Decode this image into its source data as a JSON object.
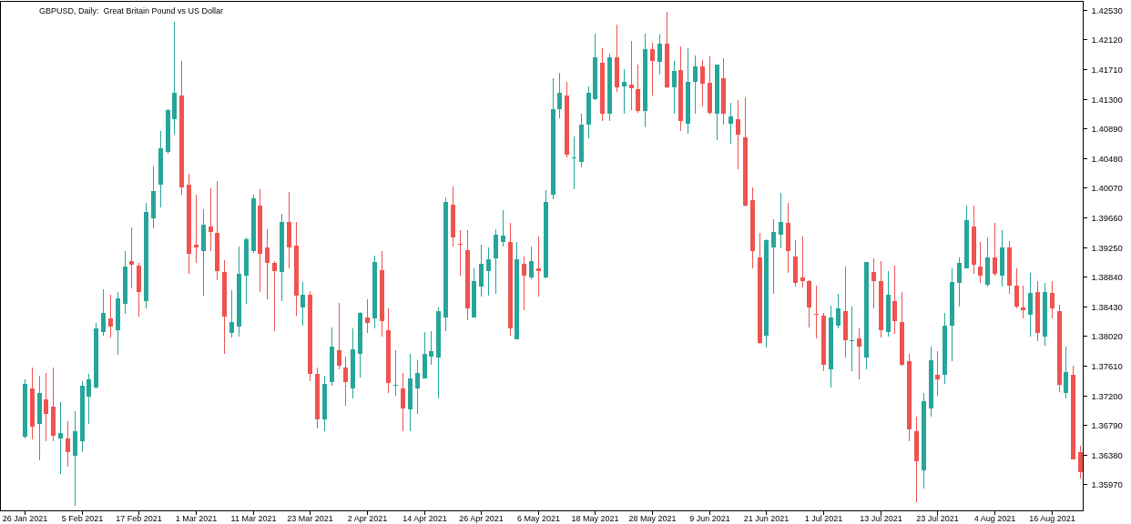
{
  "chart_data": {
    "type": "candlestick",
    "title": "GBPUSD, Daily:  Great Britain Pound vs US Dollar",
    "categories": [
      "26 Jan 2021",
      null,
      null,
      null,
      null,
      null,
      null,
      null,
      "5 Feb 2021",
      null,
      null,
      null,
      null,
      null,
      null,
      null,
      "17 Feb 2021",
      null,
      null,
      null,
      null,
      null,
      null,
      null,
      "1 Mar 2021",
      null,
      null,
      null,
      null,
      null,
      null,
      null,
      "11 Mar 2021",
      null,
      null,
      null,
      null,
      null,
      null,
      null,
      "23 Mar 2021",
      null,
      null,
      null,
      null,
      null,
      null,
      null,
      "2 Apr 2021",
      null,
      null,
      null,
      null,
      null,
      null,
      null,
      "14 Apr 2021",
      null,
      null,
      null,
      null,
      null,
      null,
      null,
      "26 Apr 2021",
      null,
      null,
      null,
      null,
      null,
      null,
      null,
      "6 May 2021",
      null,
      null,
      null,
      null,
      null,
      null,
      null,
      "18 May 2021",
      null,
      null,
      null,
      null,
      null,
      null,
      null,
      "28 May 2021",
      null,
      null,
      null,
      null,
      null,
      null,
      null,
      "9 Jun 2021",
      null,
      null,
      null,
      null,
      null,
      null,
      null,
      "21 Jun 2021",
      null,
      null,
      null,
      null,
      null,
      null,
      null,
      "1 Jul 2021",
      null,
      null,
      null,
      null,
      null,
      null,
      null,
      "13 Jul 2021",
      null,
      null,
      null,
      null,
      null,
      null,
      null,
      "23 Jul 2021",
      null,
      null,
      null,
      null,
      null,
      null,
      null,
      "4 Aug 2021",
      null,
      null,
      null,
      null,
      null,
      null,
      null,
      "16 Aug 2021",
      null,
      null,
      null,
      null
    ],
    "ohlc": [
      [
        1.3663,
        1.3742,
        1.366,
        1.3736
      ],
      [
        1.3729,
        1.3759,
        1.3659,
        1.3677
      ],
      [
        1.3681,
        1.3747,
        1.363,
        1.3723
      ],
      [
        1.3714,
        1.3751,
        1.3656,
        1.3694
      ],
      [
        1.3704,
        1.3759,
        1.3657,
        1.3664
      ],
      [
        1.366,
        1.3711,
        1.3611,
        1.3668
      ],
      [
        1.366,
        1.3684,
        1.3621,
        1.3642
      ],
      [
        1.3637,
        1.3698,
        1.3567,
        1.3671
      ],
      [
        1.3657,
        1.374,
        1.3642,
        1.3733
      ],
      [
        1.3718,
        1.375,
        1.368,
        1.3742
      ],
      [
        1.3731,
        1.382,
        1.373,
        1.3812
      ],
      [
        1.3807,
        1.3867,
        1.3802,
        1.3834
      ],
      [
        1.3826,
        1.3859,
        1.38,
        1.3815
      ],
      [
        1.381,
        1.3863,
        1.3776,
        1.3854
      ],
      [
        1.3847,
        1.3919,
        1.3833,
        1.3898
      ],
      [
        1.3906,
        1.3952,
        1.3868,
        1.3901
      ],
      [
        1.3899,
        1.3903,
        1.3829,
        1.3863
      ],
      [
        1.385,
        1.3986,
        1.384,
        1.3974
      ],
      [
        1.3965,
        1.4036,
        1.3951,
        1.4002
      ],
      [
        1.4011,
        1.4086,
        1.398,
        1.4062
      ],
      [
        1.4057,
        1.4116,
        1.4054,
        1.4115
      ],
      [
        1.4102,
        1.4237,
        1.4081,
        1.4139
      ],
      [
        1.4135,
        1.4182,
        1.3998,
        1.4008
      ],
      [
        1.4011,
        1.4026,
        1.3888,
        1.3916
      ],
      [
        1.3928,
        1.3998,
        1.3903,
        1.3925
      ],
      [
        1.392,
        1.3977,
        1.3858,
        1.3956
      ],
      [
        1.3953,
        1.4006,
        1.392,
        1.3946
      ],
      [
        1.3945,
        1.4016,
        1.3879,
        1.3892
      ],
      [
        1.3891,
        1.3907,
        1.3778,
        1.3829
      ],
      [
        1.3806,
        1.3865,
        1.38,
        1.3821
      ],
      [
        1.3815,
        1.3926,
        1.3801,
        1.3888
      ],
      [
        1.3886,
        1.3938,
        1.3846,
        1.3936
      ],
      [
        1.392,
        1.3997,
        1.3917,
        1.3992
      ],
      [
        1.3983,
        1.4005,
        1.3863,
        1.3916
      ],
      [
        1.3925,
        1.395,
        1.3853,
        1.3903
      ],
      [
        1.3903,
        1.3906,
        1.3809,
        1.3892
      ],
      [
        1.3891,
        1.3971,
        1.385,
        1.396
      ],
      [
        1.396,
        1.4001,
        1.3896,
        1.3924
      ],
      [
        1.3927,
        1.396,
        1.383,
        1.3858
      ],
      [
        1.3841,
        1.3877,
        1.3817,
        1.3859
      ],
      [
        1.3859,
        1.3864,
        1.374,
        1.375
      ],
      [
        1.375,
        1.3759,
        1.3674,
        1.3687
      ],
      [
        1.3687,
        1.3747,
        1.3671,
        1.3736
      ],
      [
        1.3739,
        1.3814,
        1.3733,
        1.3788
      ],
      [
        1.3783,
        1.3848,
        1.3756,
        1.3761
      ],
      [
        1.3759,
        1.3774,
        1.3706,
        1.3739
      ],
      [
        1.373,
        1.3812,
        1.3716,
        1.3784
      ],
      [
        1.3777,
        1.3835,
        1.3745,
        1.3834
      ],
      [
        1.3828,
        1.3853,
        1.3806,
        1.382
      ],
      [
        1.3826,
        1.3913,
        1.3813,
        1.3905
      ],
      [
        1.3893,
        1.3919,
        1.3801,
        1.3823
      ],
      [
        1.381,
        1.384,
        1.3723,
        1.3737
      ],
      [
        1.3733,
        1.3782,
        1.3719,
        1.3734
      ],
      [
        1.3729,
        1.3751,
        1.3671,
        1.3702
      ],
      [
        1.3701,
        1.3777,
        1.367,
        1.3744
      ],
      [
        1.373,
        1.3768,
        1.3694,
        1.3751
      ],
      [
        1.3744,
        1.3808,
        1.3743,
        1.3777
      ],
      [
        1.3773,
        1.3809,
        1.3762,
        1.3781
      ],
      [
        1.3772,
        1.3842,
        1.3716,
        1.3837
      ],
      [
        1.3828,
        1.3994,
        1.3809,
        1.3987
      ],
      [
        1.3984,
        1.4009,
        1.3926,
        1.3938
      ],
      [
        1.393,
        1.3948,
        1.3885,
        1.3928
      ],
      [
        1.3921,
        1.3948,
        1.3824,
        1.384
      ],
      [
        1.3828,
        1.3896,
        1.3828,
        1.3878
      ],
      [
        1.3871,
        1.3928,
        1.3857,
        1.3902
      ],
      [
        1.3892,
        1.3924,
        1.3858,
        1.3908
      ],
      [
        1.3909,
        1.395,
        1.3861,
        1.3942
      ],
      [
        1.3932,
        1.3976,
        1.3926,
        1.3941
      ],
      [
        1.3932,
        1.3958,
        1.3802,
        1.3812
      ],
      [
        1.3798,
        1.3932,
        1.3798,
        1.3908
      ],
      [
        1.3902,
        1.3912,
        1.3838,
        1.3885
      ],
      [
        1.3883,
        1.3926,
        1.3881,
        1.3906
      ],
      [
        1.3896,
        1.394,
        1.3857,
        1.3892
      ],
      [
        1.3883,
        1.4004,
        1.3882,
        1.3987
      ],
      [
        1.3997,
        1.4158,
        1.3991,
        1.4116
      ],
      [
        1.4116,
        1.4166,
        1.4103,
        1.4139
      ],
      [
        1.4135,
        1.4153,
        1.4049,
        1.4053
      ],
      [
        1.4048,
        1.4078,
        1.4005,
        1.4049
      ],
      [
        1.4043,
        1.411,
        1.4035,
        1.4094
      ],
      [
        1.4094,
        1.4147,
        1.4076,
        1.4138
      ],
      [
        1.413,
        1.422,
        1.4128,
        1.4188
      ],
      [
        1.418,
        1.42,
        1.4099,
        1.4109
      ],
      [
        1.4109,
        1.4192,
        1.41,
        1.4188
      ],
      [
        1.4188,
        1.4233,
        1.414,
        1.4146
      ],
      [
        1.4147,
        1.4171,
        1.411,
        1.4153
      ],
      [
        1.415,
        1.421,
        1.4115,
        1.4145
      ],
      [
        1.4144,
        1.4177,
        1.4111,
        1.4113
      ],
      [
        1.4113,
        1.422,
        1.409,
        1.4199
      ],
      [
        1.4199,
        1.4208,
        1.4134,
        1.4183
      ],
      [
        1.4181,
        1.4219,
        1.4163,
        1.4206
      ],
      [
        1.4206,
        1.425,
        1.4145,
        1.4146
      ],
      [
        1.4146,
        1.4182,
        1.411,
        1.4168
      ],
      [
        1.417,
        1.4203,
        1.4085,
        1.41
      ],
      [
        1.4095,
        1.42,
        1.4082,
        1.4154
      ],
      [
        1.4153,
        1.419,
        1.411,
        1.4175
      ],
      [
        1.4175,
        1.4184,
        1.4119,
        1.4151
      ],
      [
        1.4152,
        1.4189,
        1.4108,
        1.4111
      ],
      [
        1.4109,
        1.4178,
        1.4073,
        1.4177
      ],
      [
        1.4158,
        1.4186,
        1.4094,
        1.411
      ],
      [
        1.4096,
        1.4124,
        1.4068,
        1.4106
      ],
      [
        1.4102,
        1.4128,
        1.4033,
        1.4081
      ],
      [
        1.4077,
        1.4132,
        1.3981,
        1.3982
      ],
      [
        1.399,
        1.4008,
        1.3895,
        1.392
      ],
      [
        1.3911,
        1.3945,
        1.3791,
        1.3792
      ],
      [
        1.3803,
        1.3936,
        1.3786,
        1.3934
      ],
      [
        1.3925,
        1.3964,
        1.386,
        1.3946
      ],
      [
        1.3942,
        1.4,
        1.3923,
        1.396
      ],
      [
        1.3958,
        1.3986,
        1.3889,
        1.3919
      ],
      [
        1.3912,
        1.3935,
        1.3871,
        1.3876
      ],
      [
        1.3883,
        1.394,
        1.3869,
        1.3878
      ],
      [
        1.3878,
        1.3879,
        1.3814,
        1.3842
      ],
      [
        1.3833,
        1.3872,
        1.3799,
        1.3831
      ],
      [
        1.383,
        1.3834,
        1.3754,
        1.3762
      ],
      [
        1.3756,
        1.3844,
        1.3731,
        1.3828
      ],
      [
        1.3816,
        1.3861,
        1.3813,
        1.384
      ],
      [
        1.3837,
        1.3898,
        1.3772,
        1.3796
      ],
      [
        1.3795,
        1.3843,
        1.3753,
        1.3796
      ],
      [
        1.3799,
        1.3812,
        1.3742,
        1.3788
      ],
      [
        1.3772,
        1.3904,
        1.3756,
        1.3904
      ],
      [
        1.389,
        1.391,
        1.384,
        1.3878
      ],
      [
        1.3878,
        1.3906,
        1.38,
        1.381
      ],
      [
        1.3807,
        1.3892,
        1.3801,
        1.3859
      ],
      [
        1.385,
        1.3899,
        1.3805,
        1.3823
      ],
      [
        1.3821,
        1.3863,
        1.3761,
        1.3762
      ],
      [
        1.3767,
        1.3777,
        1.3656,
        1.3673
      ],
      [
        1.367,
        1.3691,
        1.3572,
        1.3629
      ],
      [
        1.3617,
        1.3723,
        1.3591,
        1.3712
      ],
      [
        1.3702,
        1.3787,
        1.3691,
        1.3768
      ],
      [
        1.3749,
        1.3781,
        1.372,
        1.3742
      ],
      [
        1.3748,
        1.3834,
        1.3736,
        1.3817
      ],
      [
        1.3816,
        1.3895,
        1.3767,
        1.3877
      ],
      [
        1.3876,
        1.3911,
        1.3843,
        1.3903
      ],
      [
        1.3896,
        1.3982,
        1.3895,
        1.3962
      ],
      [
        1.3953,
        1.3983,
        1.3888,
        1.3901
      ],
      [
        1.3898,
        1.3932,
        1.3875,
        1.3885
      ],
      [
        1.3873,
        1.3939,
        1.387,
        1.3911
      ],
      [
        1.3911,
        1.3958,
        1.3885,
        1.3888
      ],
      [
        1.3885,
        1.3949,
        1.3871,
        1.3924
      ],
      [
        1.3924,
        1.3933,
        1.3861,
        1.3872
      ],
      [
        1.3872,
        1.3895,
        1.384,
        1.3843
      ],
      [
        1.3841,
        1.3872,
        1.3826,
        1.3838
      ],
      [
        1.3831,
        1.3889,
        1.3801,
        1.3862
      ],
      [
        1.3863,
        1.3878,
        1.3795,
        1.3806
      ],
      [
        1.3801,
        1.3876,
        1.3789,
        1.3863
      ],
      [
        1.3862,
        1.3878,
        1.3827,
        1.384
      ],
      [
        1.3837,
        1.3845,
        1.3725,
        1.3735
      ],
      [
        1.3723,
        1.3787,
        1.3716,
        1.3752
      ],
      [
        1.3749,
        1.3761,
        1.3631,
        1.3631
      ],
      [
        1.3641,
        1.365,
        1.3605,
        1.3614
      ]
    ],
    "colors": [
      "#26a69a",
      "#ef5350",
      "#26a69a",
      "#ef5350",
      "#ef5350",
      "#26a69a",
      "#ef5350",
      "#26a69a",
      "#26a69a",
      "#26a69a",
      "#26a69a",
      "#26a69a",
      "#ef5350",
      "#26a69a",
      "#26a69a",
      "#ef5350",
      "#ef5350",
      "#26a69a",
      "#26a69a",
      "#26a69a",
      "#26a69a",
      "#26a69a",
      "#ef5350",
      "#ef5350",
      "#ef5350",
      "#26a69a",
      "#ef5350",
      "#ef5350",
      "#ef5350",
      "#26a69a",
      "#26a69a",
      "#26a69a",
      "#26a69a",
      "#ef5350",
      "#ef5350",
      "#ef5350",
      "#26a69a",
      "#ef5350",
      "#ef5350",
      "#26a69a",
      "#ef5350",
      "#ef5350",
      "#26a69a",
      "#26a69a",
      "#ef5350",
      "#ef5350",
      "#26a69a",
      "#26a69a",
      "#ef5350",
      "#26a69a",
      "#ef5350",
      "#ef5350",
      "#26a69a",
      "#ef5350",
      "#26a69a",
      "#26a69a",
      "#26a69a",
      "#26a69a",
      "#26a69a",
      "#26a69a",
      "#ef5350",
      "#ef5350",
      "#ef5350",
      "#26a69a",
      "#26a69a",
      "#26a69a",
      "#26a69a",
      "#26a69a",
      "#ef5350",
      "#26a69a",
      "#ef5350",
      "#26a69a",
      "#ef5350",
      "#26a69a",
      "#26a69a",
      "#26a69a",
      "#ef5350",
      "#26a69a",
      "#26a69a",
      "#26a69a",
      "#26a69a",
      "#ef5350",
      "#26a69a",
      "#ef5350",
      "#26a69a",
      "#ef5350",
      "#ef5350",
      "#26a69a",
      "#ef5350",
      "#26a69a",
      "#ef5350",
      "#26a69a",
      "#ef5350",
      "#26a69a",
      "#26a69a",
      "#ef5350",
      "#ef5350",
      "#26a69a",
      "#ef5350",
      "#26a69a",
      "#ef5350",
      "#ef5350",
      "#ef5350",
      "#ef5350",
      "#26a69a",
      "#26a69a",
      "#26a69a",
      "#ef5350",
      "#ef5350",
      "#ef5350",
      "#ef5350",
      "#ef5350",
      "#ef5350",
      "#26a69a",
      "#26a69a",
      "#ef5350",
      "#26a69a",
      "#ef5350",
      "#26a69a",
      "#ef5350",
      "#ef5350",
      "#26a69a",
      "#ef5350",
      "#ef5350",
      "#ef5350",
      "#ef5350",
      "#26a69a",
      "#26a69a",
      "#ef5350",
      "#26a69a",
      "#26a69a",
      "#26a69a",
      "#26a69a",
      "#ef5350",
      "#ef5350",
      "#26a69a",
      "#ef5350",
      "#26a69a",
      "#ef5350",
      "#ef5350",
      "#ef5350",
      "#26a69a",
      "#ef5350",
      "#26a69a",
      "#ef5350",
      "#ef5350",
      "#26a69a",
      "#ef5350",
      "#ef5350"
    ],
    "ylim": [
      1.35604,
      1.42648
    ],
    "yticks": [
      {
        "value": 1.4253,
        "label": "1.42530"
      },
      {
        "value": 1.4212,
        "label": "1.42120"
      },
      {
        "value": 1.4171,
        "label": "1.41710"
      },
      {
        "value": 1.413,
        "label": "1.41300"
      },
      {
        "value": 1.4089,
        "label": "1.40890"
      },
      {
        "value": 1.4048,
        "label": "1.40480"
      },
      {
        "value": 1.4007,
        "label": "1.40070"
      },
      {
        "value": 1.3966,
        "label": "1.39660"
      },
      {
        "value": 1.3925,
        "label": "1.39250"
      },
      {
        "value": 1.3884,
        "label": "1.38840"
      },
      {
        "value": 1.3843,
        "label": "1.38430"
      },
      {
        "value": 1.3802,
        "label": "1.38020"
      },
      {
        "value": 1.3761,
        "label": "1.37610"
      },
      {
        "value": 1.372,
        "label": "1.37200"
      },
      {
        "value": 1.3679,
        "label": "1.36790"
      },
      {
        "value": 1.3638,
        "label": "1.36380"
      },
      {
        "value": 1.3597,
        "label": "1.35970"
      }
    ]
  }
}
